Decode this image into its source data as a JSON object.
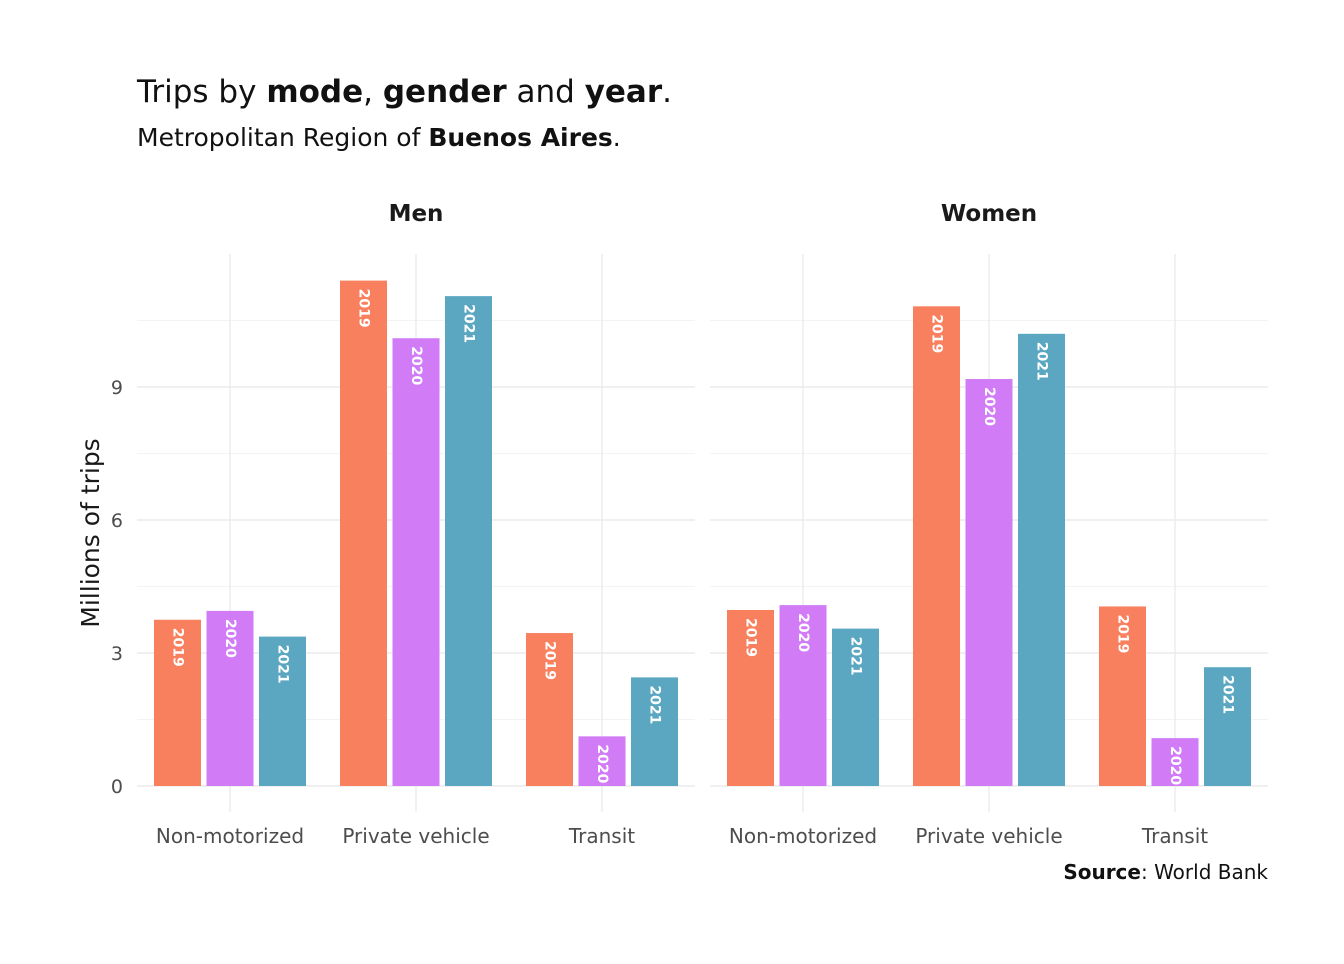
{
  "header": {
    "title_parts": [
      {
        "text": "Trips by ",
        "bold": false
      },
      {
        "text": "mode",
        "bold": true
      },
      {
        "text": ", ",
        "bold": false
      },
      {
        "text": "gender",
        "bold": true
      },
      {
        "text": " and ",
        "bold": false
      },
      {
        "text": "year",
        "bold": true
      },
      {
        "text": ".",
        "bold": false
      }
    ],
    "subtitle_parts": [
      {
        "text": "Metropolitan Region of ",
        "bold": false
      },
      {
        "text": "Buenos Aires",
        "bold": true
      },
      {
        "text": ".",
        "bold": false
      }
    ]
  },
  "caption": {
    "label": "Source",
    "text": ": World Bank"
  },
  "colors": {
    "2019": "#F8805F",
    "2020": "#D17CF6",
    "2021": "#5BA7C1"
  },
  "chart_data": {
    "type": "bar",
    "ylabel": "Millions of trips",
    "ylim": [
      0,
      12
    ],
    "yticks": [
      0,
      3,
      6,
      9
    ],
    "grid": true,
    "legend": "none",
    "categories": [
      "Non-motorized",
      "Private vehicle",
      "Transit"
    ],
    "years": [
      "2019",
      "2020",
      "2021"
    ],
    "facets": [
      {
        "name": "Men",
        "series": [
          {
            "name": "2019",
            "values": [
              3.75,
              11.4,
              3.45
            ]
          },
          {
            "name": "2020",
            "values": [
              3.95,
              10.1,
              1.12
            ]
          },
          {
            "name": "2021",
            "values": [
              3.37,
              11.05,
              2.45
            ]
          }
        ]
      },
      {
        "name": "Women",
        "series": [
          {
            "name": "2019",
            "values": [
              3.97,
              10.82,
              4.05
            ]
          },
          {
            "name": "2020",
            "values": [
              4.08,
              9.18,
              1.08
            ]
          },
          {
            "name": "2021",
            "values": [
              3.55,
              10.2,
              2.68
            ]
          }
        ]
      }
    ]
  }
}
